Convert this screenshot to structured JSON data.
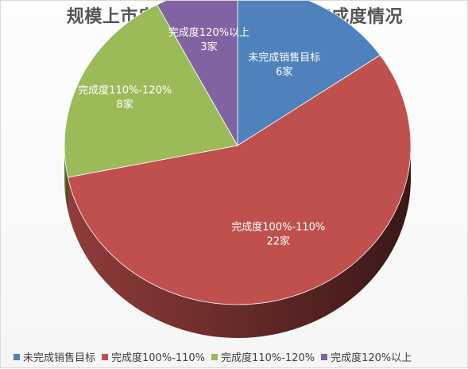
{
  "chart_data": {
    "type": "pie",
    "title": "规模上市房企2019年销售目标完成度情况",
    "slices": [
      {
        "name": "未完成销售目标",
        "value": 6,
        "label": "未完成销售目标",
        "value_label": "6家",
        "color": "#4f81bd"
      },
      {
        "name": "完成度100%-110%",
        "value": 22,
        "label": "完成度100%-110%",
        "value_label": "22家",
        "color": "#c0504d"
      },
      {
        "name": "完成度110%-120%",
        "value": 8,
        "label": "完成度110%-120%",
        "value_label": "8家",
        "color": "#9bbb59"
      },
      {
        "name": "完成度120%以上",
        "value": 3,
        "label": "完成度120%以上",
        "value_label": "3家",
        "color": "#8064a2"
      }
    ],
    "legend_position": "bottom",
    "style": "3d"
  }
}
